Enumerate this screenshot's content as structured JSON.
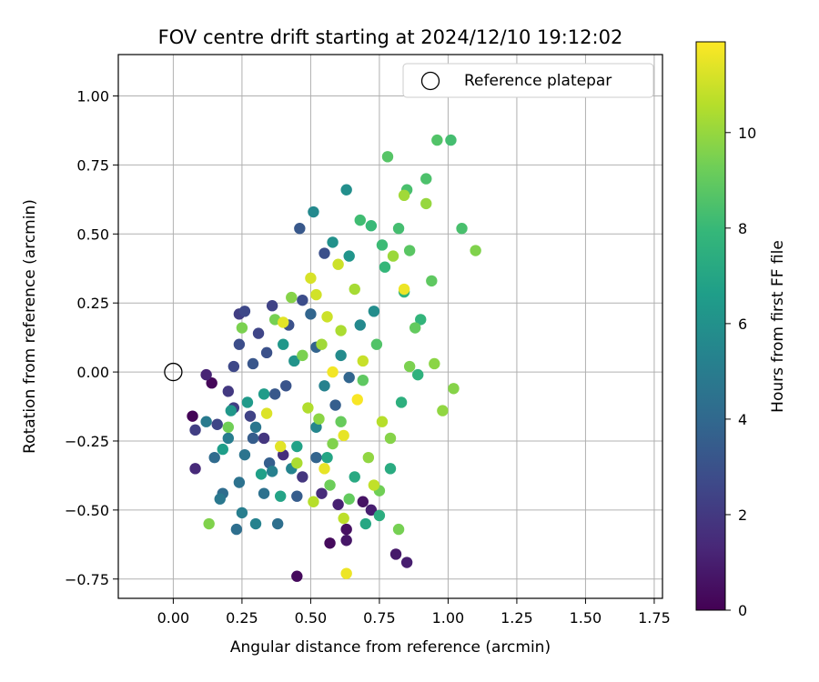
{
  "chart_data": {
    "type": "scatter",
    "title": "FOV centre drift starting at 2024/12/10 19:12:02",
    "xlabel": "Angular distance from reference (arcmin)",
    "ylabel": "Rotation from reference (arcmin)",
    "xlim": [
      -0.2,
      1.78
    ],
    "ylim": [
      -0.82,
      1.15
    ],
    "xticks": [
      0.0,
      0.25,
      0.5,
      0.75,
      1.0,
      1.25,
      1.5,
      1.75
    ],
    "xtick_labels": [
      "0.00",
      "0.25",
      "0.50",
      "0.75",
      "1.00",
      "1.25",
      "1.50",
      "1.75"
    ],
    "yticks": [
      -0.75,
      -0.5,
      -0.25,
      0.0,
      0.25,
      0.5,
      0.75,
      1.0
    ],
    "ytick_labels": [
      "−0.75",
      "−0.50",
      "−0.25",
      "0.00",
      "0.25",
      "0.50",
      "0.75",
      "1.00"
    ],
    "grid": true,
    "legend": {
      "placement": "top-right",
      "entries": [
        {
          "label": "Reference platepar",
          "marker": "open-circle"
        }
      ]
    },
    "reference_point": {
      "x": 0.0,
      "y": 0.0
    },
    "colorbar": {
      "label": "Hours from first FF file",
      "colormap": "viridis",
      "range": [
        0,
        11.9
      ],
      "ticks": [
        0,
        2,
        4,
        6,
        8,
        10
      ],
      "tick_labels": [
        "0",
        "2",
        "4",
        "6",
        "8",
        "10"
      ]
    },
    "points_hours_range": [
      0,
      11.9
    ],
    "points": [
      [
        0.07,
        -0.16,
        0.1
      ],
      [
        0.08,
        -0.35,
        1.4
      ],
      [
        0.12,
        -0.01,
        1.2
      ],
      [
        0.14,
        -0.04,
        0.2
      ],
      [
        0.45,
        -0.74,
        0.3
      ],
      [
        0.57,
        -0.62,
        0.3
      ],
      [
        0.63,
        -0.57,
        0.5
      ],
      [
        0.63,
        -0.61,
        0.7
      ],
      [
        0.81,
        -0.66,
        0.8
      ],
      [
        0.85,
        -0.69,
        1.0
      ],
      [
        0.69,
        -0.47,
        0.6
      ],
      [
        0.72,
        -0.5,
        1.0
      ],
      [
        0.6,
        -0.48,
        1.1
      ],
      [
        0.54,
        -0.44,
        1.5
      ],
      [
        0.47,
        -0.38,
        1.9
      ],
      [
        0.4,
        -0.3,
        1.6
      ],
      [
        0.33,
        -0.24,
        1.9
      ],
      [
        0.2,
        -0.07,
        2.0
      ],
      [
        0.22,
        -0.13,
        2.2
      ],
      [
        0.28,
        -0.16,
        2.4
      ],
      [
        0.08,
        -0.21,
        2.2
      ],
      [
        0.16,
        -0.19,
        2.5
      ],
      [
        0.24,
        0.21,
        2.2
      ],
      [
        0.26,
        0.22,
        2.6
      ],
      [
        0.31,
        0.14,
        2.5
      ],
      [
        0.36,
        0.24,
        2.4
      ],
      [
        0.22,
        0.02,
        2.6
      ],
      [
        0.24,
        0.1,
        2.8
      ],
      [
        0.47,
        0.26,
        2.8
      ],
      [
        0.55,
        0.43,
        2.9
      ],
      [
        0.42,
        0.17,
        3.0
      ],
      [
        0.34,
        0.07,
        3.0
      ],
      [
        0.29,
        0.03,
        3.2
      ],
      [
        0.41,
        -0.05,
        3.1
      ],
      [
        0.37,
        -0.08,
        3.3
      ],
      [
        0.46,
        0.52,
        3.3
      ],
      [
        0.29,
        -0.24,
        3.5
      ],
      [
        0.35,
        -0.33,
        3.6
      ],
      [
        0.45,
        -0.45,
        3.5
      ],
      [
        0.52,
        -0.31,
        3.8
      ],
      [
        0.59,
        -0.12,
        3.6
      ],
      [
        0.64,
        -0.02,
        3.9
      ],
      [
        0.52,
        0.09,
        3.8
      ],
      [
        0.5,
        0.21,
        3.9
      ],
      [
        0.18,
        -0.44,
        4.2
      ],
      [
        0.23,
        -0.57,
        4.3
      ],
      [
        0.15,
        -0.31,
        4.1
      ],
      [
        0.24,
        -0.4,
        4.5
      ],
      [
        0.33,
        -0.44,
        4.4
      ],
      [
        0.38,
        -0.55,
        4.3
      ],
      [
        0.17,
        -0.46,
        4.8
      ],
      [
        0.26,
        -0.3,
        4.6
      ],
      [
        0.3,
        -0.2,
        4.7
      ],
      [
        0.2,
        -0.24,
        5.0
      ],
      [
        0.12,
        -0.18,
        4.9
      ],
      [
        0.25,
        -0.51,
        5.1
      ],
      [
        0.3,
        -0.55,
        5.3
      ],
      [
        0.36,
        -0.36,
        5.2
      ],
      [
        0.43,
        -0.35,
        5.4
      ],
      [
        0.52,
        -0.2,
        5.5
      ],
      [
        0.55,
        -0.05,
        5.3
      ],
      [
        0.61,
        0.06,
        5.7
      ],
      [
        0.68,
        0.17,
        5.6
      ],
      [
        0.73,
        0.22,
        5.8
      ],
      [
        0.51,
        0.58,
        5.6
      ],
      [
        0.63,
        0.66,
        5.9
      ],
      [
        0.58,
        0.47,
        6.0
      ],
      [
        0.64,
        0.42,
        6.2
      ],
      [
        0.44,
        0.04,
        6.1
      ],
      [
        0.4,
        0.1,
        6.3
      ],
      [
        0.33,
        -0.08,
        6.5
      ],
      [
        0.27,
        -0.11,
        6.4
      ],
      [
        0.21,
        -0.14,
        6.3
      ],
      [
        0.18,
        -0.28,
        6.6
      ],
      [
        0.32,
        -0.37,
        6.7
      ],
      [
        0.39,
        -0.45,
        6.9
      ],
      [
        0.45,
        -0.27,
        6.8
      ],
      [
        0.56,
        -0.31,
        7.0
      ],
      [
        0.66,
        -0.38,
        7.2
      ],
      [
        0.7,
        -0.55,
        7.1
      ],
      [
        0.75,
        -0.52,
        7.4
      ],
      [
        0.79,
        -0.35,
        7.3
      ],
      [
        0.83,
        -0.11,
        7.5
      ],
      [
        0.89,
        -0.01,
        7.6
      ],
      [
        0.9,
        0.19,
        7.8
      ],
      [
        0.84,
        0.29,
        7.7
      ],
      [
        0.77,
        0.38,
        7.9
      ],
      [
        0.72,
        0.53,
        8.0
      ],
      [
        0.68,
        0.55,
        8.2
      ],
      [
        0.76,
        0.46,
        8.1
      ],
      [
        0.82,
        0.52,
        8.3
      ],
      [
        0.85,
        0.66,
        8.4
      ],
      [
        0.92,
        0.7,
        8.5
      ],
      [
        0.96,
        0.84,
        8.6
      ],
      [
        1.01,
        0.84,
        8.3
      ],
      [
        0.78,
        0.78,
        8.7
      ],
      [
        0.86,
        0.44,
        8.8
      ],
      [
        0.94,
        0.33,
        8.9
      ],
      [
        1.05,
        0.52,
        8.4
      ],
      [
        0.88,
        0.16,
        9.0
      ],
      [
        0.74,
        0.1,
        8.6
      ],
      [
        0.69,
        -0.03,
        8.9
      ],
      [
        0.61,
        -0.18,
        9.1
      ],
      [
        0.57,
        -0.41,
        9.2
      ],
      [
        0.64,
        -0.46,
        9.0
      ],
      [
        0.75,
        -0.43,
        9.3
      ],
      [
        0.82,
        -0.57,
        9.4
      ],
      [
        0.13,
        -0.55,
        9.6
      ],
      [
        0.2,
        -0.2,
        9.3
      ],
      [
        0.25,
        0.16,
        9.5
      ],
      [
        0.37,
        0.19,
        9.4
      ],
      [
        0.43,
        0.27,
        9.7
      ],
      [
        0.47,
        0.06,
        9.5
      ],
      [
        0.53,
        -0.17,
        9.8
      ],
      [
        0.58,
        -0.26,
        9.6
      ],
      [
        0.71,
        -0.31,
        9.9
      ],
      [
        0.79,
        -0.24,
        9.7
      ],
      [
        0.86,
        0.02,
        9.5
      ],
      [
        0.95,
        0.03,
        9.8
      ],
      [
        0.98,
        -0.14,
        9.9
      ],
      [
        1.1,
        0.44,
        9.6
      ],
      [
        1.02,
        -0.06,
        9.7
      ],
      [
        0.92,
        0.61,
        10.0
      ],
      [
        0.84,
        0.64,
        10.2
      ],
      [
        0.8,
        0.42,
        10.1
      ],
      [
        0.66,
        0.3,
        10.3
      ],
      [
        0.61,
        0.15,
        10.4
      ],
      [
        0.54,
        0.1,
        10.2
      ],
      [
        0.49,
        -0.13,
        10.5
      ],
      [
        0.45,
        -0.33,
        10.4
      ],
      [
        0.51,
        -0.47,
        10.6
      ],
      [
        0.62,
        -0.53,
        10.7
      ],
      [
        0.73,
        -0.41,
        10.8
      ],
      [
        0.76,
        -0.18,
        10.6
      ],
      [
        0.69,
        0.04,
        10.9
      ],
      [
        0.56,
        0.2,
        11.0
      ],
      [
        0.52,
        0.28,
        11.1
      ],
      [
        0.6,
        0.39,
        11.0
      ],
      [
        0.5,
        0.34,
        11.2
      ],
      [
        0.34,
        -0.15,
        11.3
      ],
      [
        0.39,
        -0.27,
        11.4
      ],
      [
        0.55,
        -0.35,
        11.5
      ],
      [
        0.63,
        -0.73,
        11.6
      ],
      [
        0.62,
        -0.23,
        11.5
      ],
      [
        0.58,
        0.0,
        11.7
      ],
      [
        0.67,
        -0.1,
        11.8
      ],
      [
        0.84,
        0.3,
        11.6
      ],
      [
        0.4,
        0.18,
        11.4
      ]
    ]
  }
}
